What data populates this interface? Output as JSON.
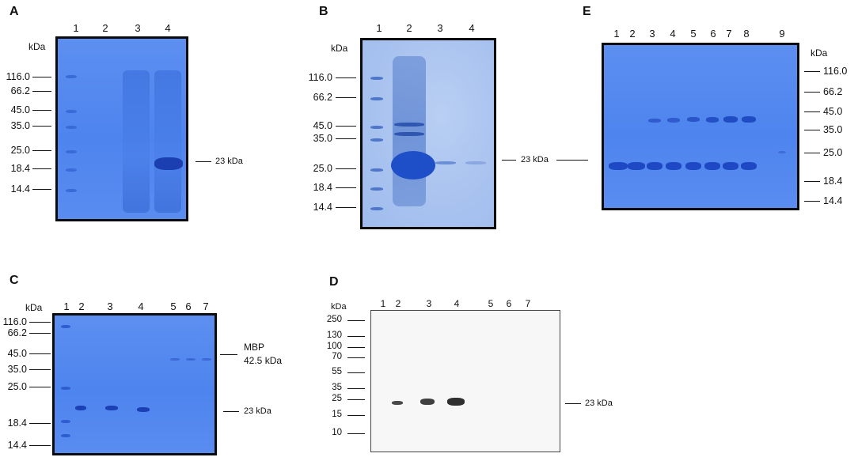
{
  "figure": {
    "panels": [
      {
        "id": "A",
        "label": "A",
        "lanes": [
          "1",
          "2",
          "3",
          "4"
        ],
        "kda_label": "kDa",
        "markers": [
          "116.0",
          "66.2",
          "45.0",
          "35.0",
          "25.0",
          "18.4",
          "14.4"
        ],
        "annotation": "23 kDa"
      },
      {
        "id": "B",
        "label": "B",
        "lanes": [
          "1",
          "2",
          "3",
          "4"
        ],
        "kda_label": "kDa",
        "markers": [
          "116.0",
          "66.2",
          "45.0",
          "35.0",
          "25.0",
          "18.4",
          "14.4"
        ],
        "annotation": "23 kDa"
      },
      {
        "id": "E",
        "label": "E",
        "lanes": [
          "1",
          "2",
          "3",
          "4",
          "5",
          "6",
          "7",
          "8",
          "9"
        ],
        "kda_label": "kDa",
        "markers": [
          "116.0",
          "66.2",
          "45.0",
          "35.0",
          "25.0",
          "18.4",
          "14.4"
        ]
      },
      {
        "id": "C",
        "label": "C",
        "lanes": [
          "1",
          "2",
          "3",
          "4",
          "5",
          "6",
          "7"
        ],
        "kda_label": "kDa",
        "markers": [
          "116.0",
          "66.2",
          "45.0",
          "35.0",
          "25.0",
          "18.4",
          "14.4"
        ],
        "annotation_mbp_line1": "MBP",
        "annotation_mbp_line2": "42.5 kDa",
        "annotation": "23 kDa"
      },
      {
        "id": "D",
        "label": "D",
        "lanes": [
          "1",
          "2",
          "3",
          "4",
          "5",
          "6",
          "7"
        ],
        "kda_label": "kDa",
        "markers": [
          "250",
          "130",
          "100",
          "70",
          "55",
          "35",
          "25",
          "15",
          "10"
        ],
        "annotation": "23 kDa"
      }
    ]
  }
}
